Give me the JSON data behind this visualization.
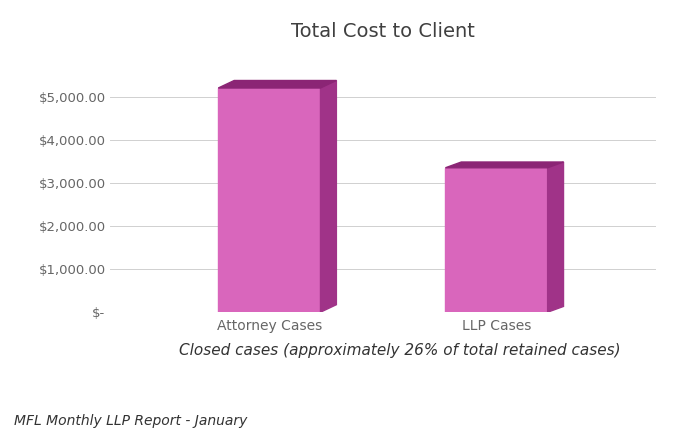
{
  "title": "Total Cost to Client",
  "categories": [
    "Attorney Cases",
    "LLP Cases"
  ],
  "values": [
    5200,
    3350
  ],
  "bar_color": "#D966BC",
  "bar_top_color": "#8B2575",
  "bar_side_color": "#A03388",
  "subtitle": "Closed cases (approximately 26% of total retained cases)",
  "footer": "MFL Monthly LLP Report - January",
  "ylim": [
    0,
    6000
  ],
  "yticks": [
    0,
    1000,
    2000,
    3000,
    4000,
    5000
  ],
  "ytick_labels": [
    "$-",
    "$1,000.00",
    "$2,000.00",
    "$3,000.00",
    "$4,000.00",
    "$5,000.00"
  ],
  "background_color": "#ffffff",
  "grid_color": "#d0d0d0",
  "title_fontsize": 14,
  "tick_fontsize": 9.5,
  "subtitle_fontsize": 11,
  "footer_fontsize": 10,
  "title_color": "#404040",
  "tick_color": "#666666"
}
